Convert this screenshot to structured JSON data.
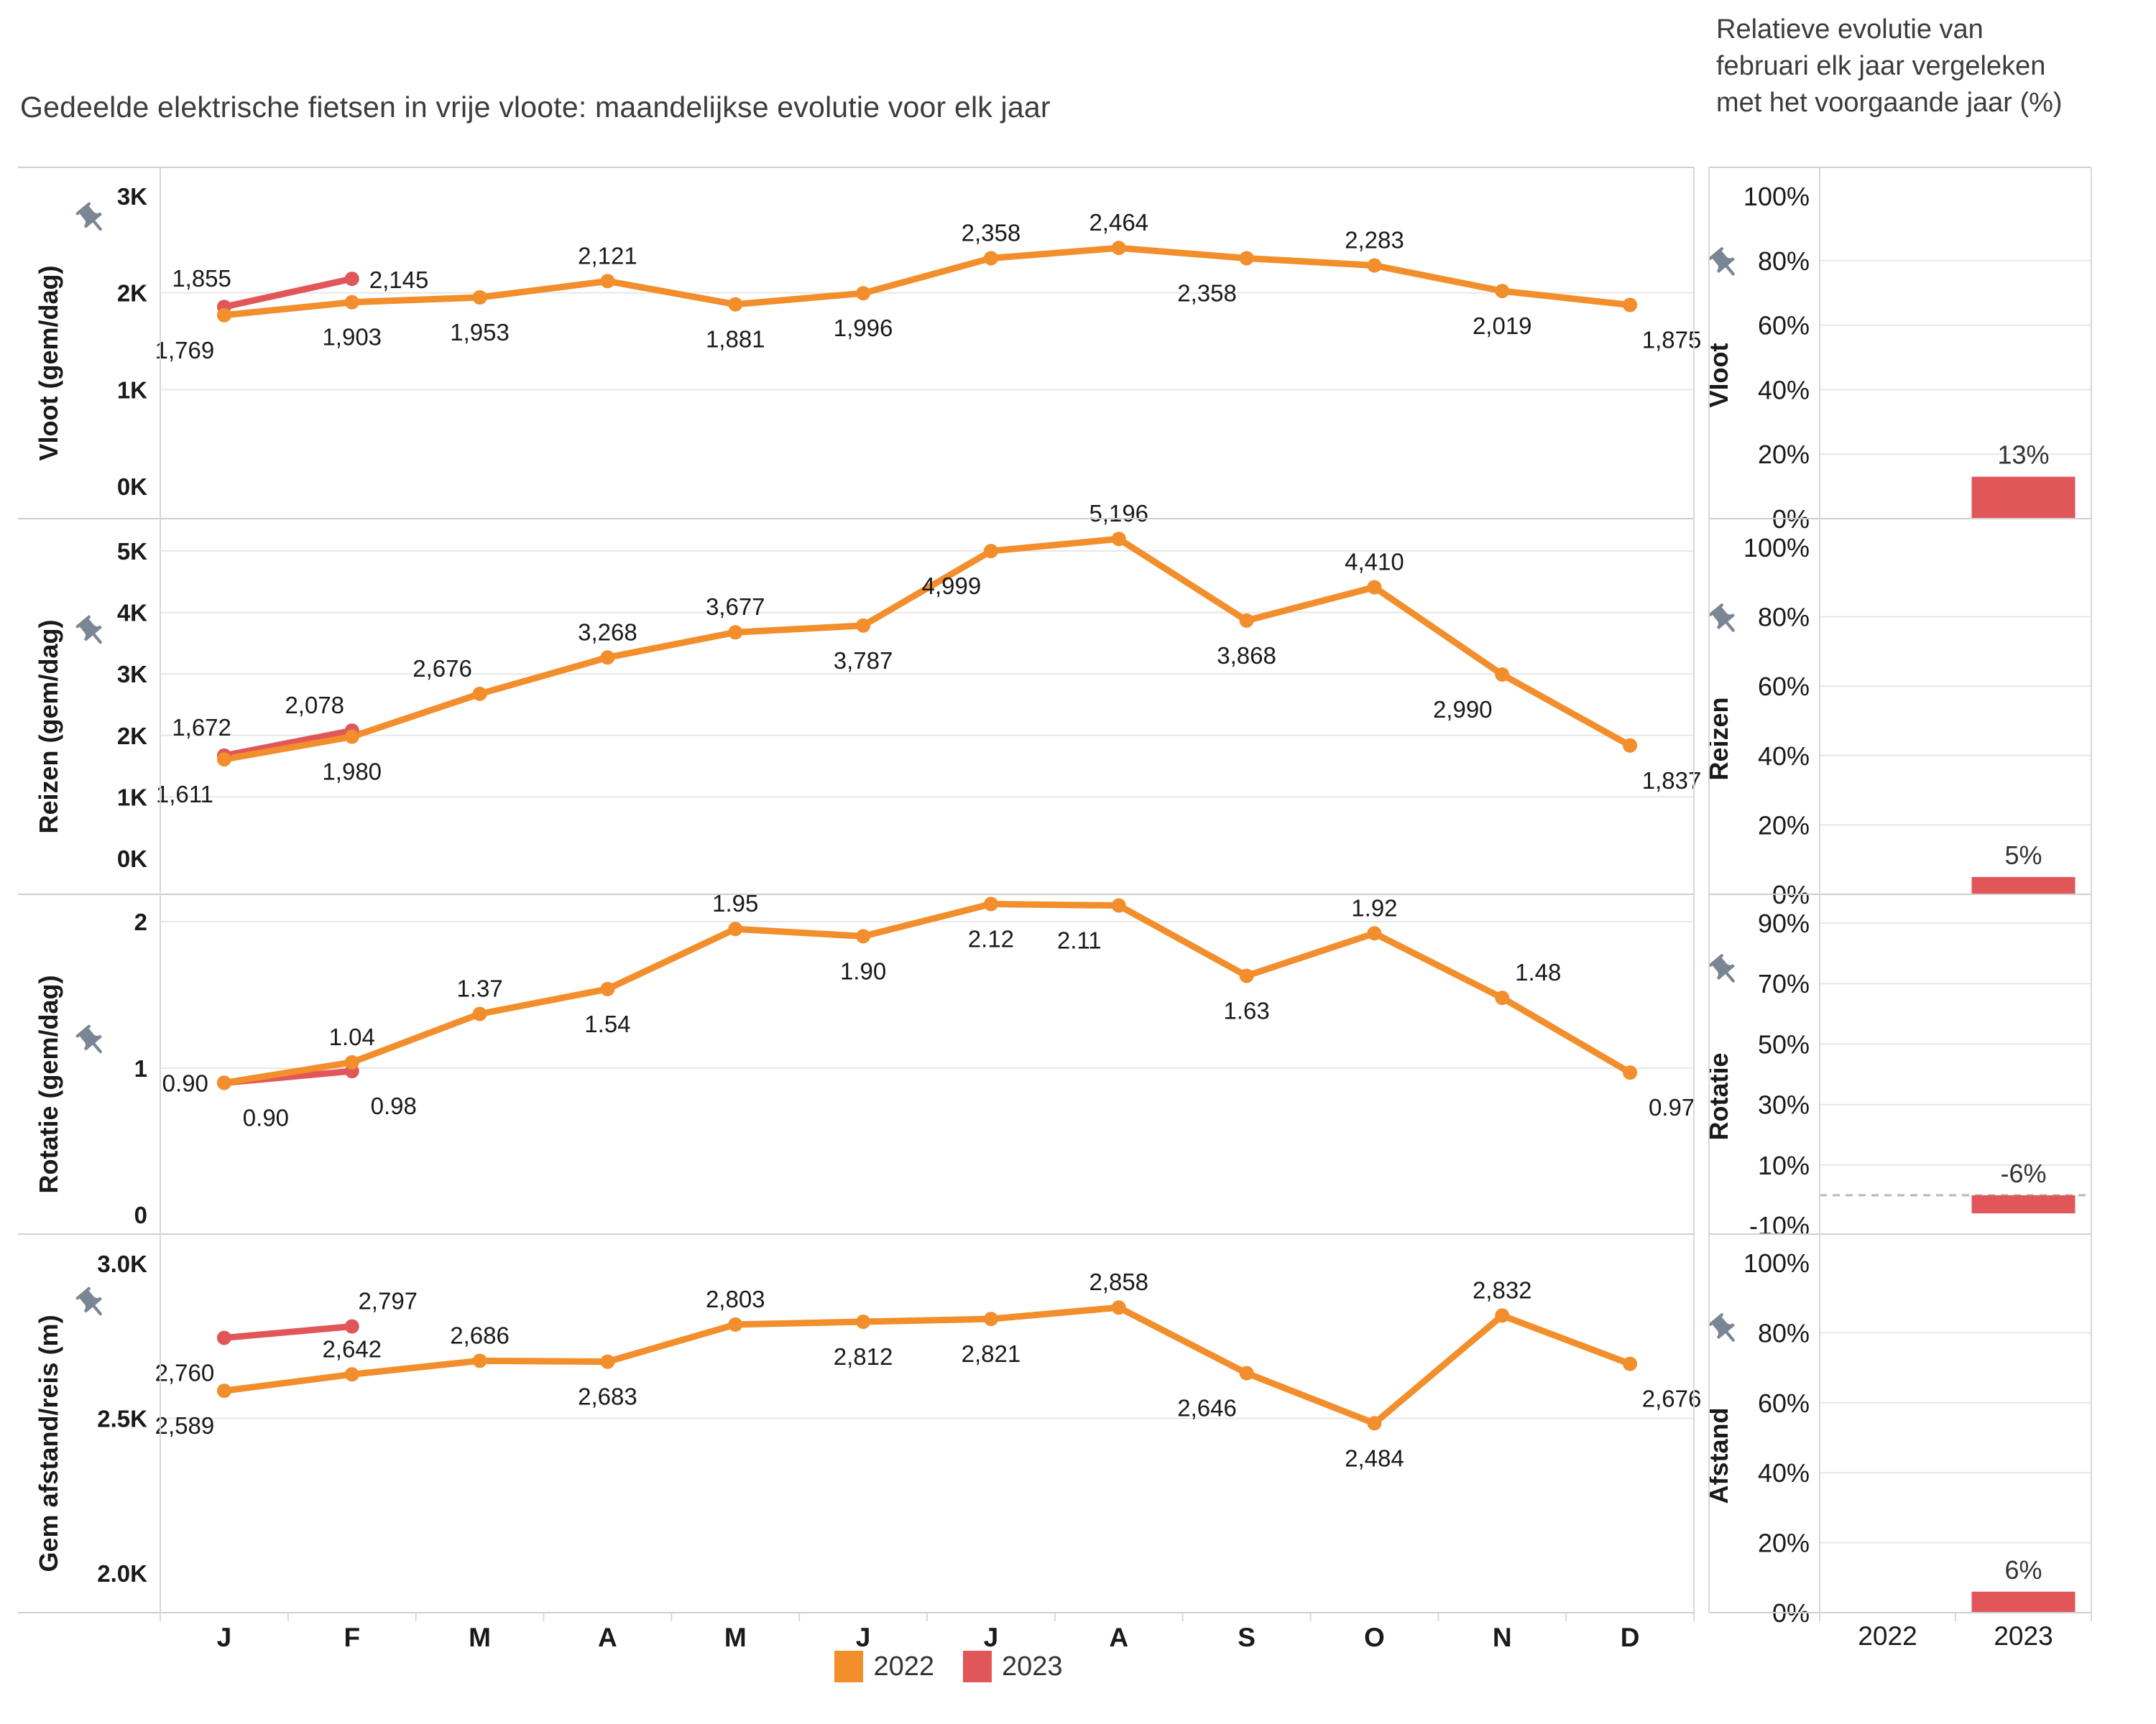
{
  "title": "Gedeelde elektrische fietsen in vrije vloote: maandelijkse evolutie voor elk jaar",
  "right_panel_title": "Relatieve evolutie van\nfebruari elk jaar vergeleken\nmet het voorgaande jaar (%)",
  "legend": [
    {
      "label": "2022",
      "color": "#F28E2B"
    },
    {
      "label": "2023",
      "color": "#E15759"
    }
  ],
  "x_axis": {
    "months": [
      "J",
      "F",
      "M",
      "A",
      "M",
      "J",
      "J",
      "A",
      "S",
      "O",
      "N",
      "D"
    ],
    "years": [
      "2022",
      "2023"
    ]
  },
  "colors": {
    "series_2022": "#F28E2B",
    "series_2023": "#E15759",
    "bar": "#E15759",
    "pin": "#7b8694",
    "grid": "#e7e7e7",
    "border": "#cfcfcf",
    "axis": "#d8d8d8",
    "text": "#1a1a1a"
  },
  "chart_data": [
    {
      "line": {
        "type": "line",
        "title": "Vloot (gem/dag)",
        "ylim": [
          0,
          3000
        ],
        "yticks": [
          {
            "v": 0,
            "t": "0K"
          },
          {
            "v": 1000,
            "t": "1K"
          },
          {
            "v": 2000,
            "t": "2K"
          },
          {
            "v": 3000,
            "t": "3K"
          }
        ],
        "series": [
          {
            "name": "2022",
            "color": "#F28E2B",
            "values": [
              1769,
              1903,
              1953,
              2121,
              1881,
              1996,
              2358,
              2464,
              2358,
              2283,
              2019,
              1875
            ],
            "labels": [
              "1,769",
              "1,903",
              "1,953",
              "2,121",
              "1,881",
              "1,996",
              "2,358",
              "2,464",
              "2,358",
              "2,283",
              "2,019",
              "1,875"
            ],
            "label_pos": [
              "below-left",
              "below",
              "below",
              "above",
              "below",
              "below",
              "above",
              "above",
              "below-left",
              "above",
              "below",
              "below-right"
            ]
          },
          {
            "name": "2023",
            "color": "#E15759",
            "values": [
              1855,
              2145
            ],
            "labels": [
              "1,855",
              "2,145"
            ],
            "label_pos": [
              "upper-left",
              "right"
            ]
          }
        ]
      },
      "bar": {
        "type": "bar",
        "title": "Vloot",
        "ylim": [
          0,
          100
        ],
        "yticks": [
          {
            "v": 100,
            "t": "100%"
          },
          {
            "v": 80,
            "t": "80%"
          },
          {
            "v": 60,
            "t": "60%"
          },
          {
            "v": 40,
            "t": "40%"
          },
          {
            "v": 20,
            "t": "20%"
          },
          {
            "v": 0,
            "t": "0%"
          }
        ],
        "categories": [
          "2022",
          "2023"
        ],
        "values": [
          null,
          13
        ],
        "bar_labels": [
          null,
          "13%"
        ],
        "zero_line": false
      }
    },
    {
      "line": {
        "type": "line",
        "title": "Reizen (gem/dag)",
        "ylim": [
          0,
          5000
        ],
        "yticks": [
          {
            "v": 0,
            "t": "0K"
          },
          {
            "v": 1000,
            "t": "1K"
          },
          {
            "v": 2000,
            "t": "2K"
          },
          {
            "v": 3000,
            "t": "3K"
          },
          {
            "v": 4000,
            "t": "4K"
          },
          {
            "v": 5000,
            "t": "5K"
          }
        ],
        "series": [
          {
            "name": "2022",
            "color": "#F28E2B",
            "values": [
              1611,
              1980,
              2676,
              3268,
              3677,
              3787,
              4999,
              5196,
              3868,
              4410,
              2990,
              1837
            ],
            "labels": [
              "1,611",
              "1,980",
              "2,676",
              "3,268",
              "3,677",
              "3,787",
              "4,999",
              "5,196",
              "3,868",
              "4,410",
              "2,990",
              "1,837"
            ],
            "label_pos": [
              "below-left",
              "below",
              "above-left",
              "above",
              "above",
              "below",
              "below-left",
              "above",
              "below",
              "above",
              "below-left",
              "below-right"
            ]
          },
          {
            "name": "2023",
            "color": "#E15759",
            "values": [
              1672,
              2078
            ],
            "labels": [
              "1,672",
              "2,078"
            ],
            "label_pos": [
              "upper-left",
              "above-left"
            ]
          }
        ]
      },
      "bar": {
        "type": "bar",
        "title": "Reizen",
        "ylim": [
          0,
          100
        ],
        "yticks": [
          {
            "v": 100,
            "t": "100%"
          },
          {
            "v": 80,
            "t": "80%"
          },
          {
            "v": 60,
            "t": "60%"
          },
          {
            "v": 40,
            "t": "40%"
          },
          {
            "v": 20,
            "t": "20%"
          },
          {
            "v": 0,
            "t": "0%"
          }
        ],
        "categories": [
          "2022",
          "2023"
        ],
        "values": [
          null,
          5
        ],
        "bar_labels": [
          null,
          "5%"
        ],
        "zero_line": false
      }
    },
    {
      "line": {
        "type": "line",
        "title": "Rotatie (gem/dag)",
        "ylim": [
          0,
          2
        ],
        "yticks": [
          {
            "v": 0,
            "t": "0"
          },
          {
            "v": 1,
            "t": "1"
          },
          {
            "v": 2,
            "t": "2"
          }
        ],
        "series": [
          {
            "name": "2022",
            "color": "#F28E2B",
            "values": [
              0.9,
              1.04,
              1.37,
              1.54,
              1.95,
              1.9,
              2.12,
              2.11,
              1.63,
              1.92,
              1.48,
              0.97
            ],
            "labels": [
              "0.90",
              "1.04",
              "1.37",
              "1.54",
              "1.95",
              "1.90",
              "2.12",
              "2.11",
              "1.63",
              "1.92",
              "1.48",
              "0.97"
            ],
            "label_pos": [
              "left",
              "above",
              "above",
              "below",
              "above",
              "below",
              "below",
              "below-left",
              "below",
              "above",
              "above-right",
              "below-right"
            ]
          },
          {
            "name": "2023",
            "color": "#E15759",
            "values": [
              0.9,
              0.98
            ],
            "labels": [
              "0.90",
              "0.98"
            ],
            "label_pos": [
              "below-right",
              "below-right"
            ]
          }
        ]
      },
      "bar": {
        "type": "bar",
        "title": "Rotatie",
        "ylim": [
          -10,
          90
        ],
        "yticks": [
          {
            "v": 90,
            "t": "90%"
          },
          {
            "v": 70,
            "t": "70%"
          },
          {
            "v": 50,
            "t": "50%"
          },
          {
            "v": 30,
            "t": "30%"
          },
          {
            "v": 10,
            "t": "10%"
          },
          {
            "v": -10,
            "t": "-10%"
          }
        ],
        "categories": [
          "2022",
          "2023"
        ],
        "values": [
          null,
          -6
        ],
        "bar_labels": [
          null,
          "-6%"
        ],
        "zero_line": true
      }
    },
    {
      "line": {
        "type": "line",
        "title": "Gem afstand/reis (m)",
        "ylim": [
          2000,
          3000
        ],
        "yticks": [
          {
            "v": 2000,
            "t": "2.0K"
          },
          {
            "v": 2500,
            "t": "2.5K"
          },
          {
            "v": 3000,
            "t": "3.0K"
          }
        ],
        "series": [
          {
            "name": "2022",
            "color": "#F28E2B",
            "values": [
              2589,
              2642,
              2686,
              2683,
              2803,
              2812,
              2821,
              2858,
              2646,
              2484,
              2832,
              2676
            ],
            "labels": [
              "2,589",
              "2,642",
              "2,686",
              "2,683",
              "2,803",
              "2,812",
              "2,821",
              "2,858",
              "2,646",
              "2,484",
              "2,832",
              "2,676"
            ],
            "label_pos": [
              "below-left",
              "above",
              "above",
              "below",
              "above",
              "below",
              "below",
              "above",
              "below-left",
              "below",
              "above",
              "below-right"
            ]
          },
          {
            "name": "2023",
            "color": "#E15759",
            "values": [
              2760,
              2797
            ],
            "labels": [
              "2,760",
              "2,797"
            ],
            "label_pos": [
              "below-left",
              "above-right"
            ]
          }
        ]
      },
      "bar": {
        "type": "bar",
        "title": "Afstand",
        "ylim": [
          0,
          100
        ],
        "yticks": [
          {
            "v": 100,
            "t": "100%"
          },
          {
            "v": 80,
            "t": "80%"
          },
          {
            "v": 60,
            "t": "60%"
          },
          {
            "v": 40,
            "t": "40%"
          },
          {
            "v": 20,
            "t": "20%"
          },
          {
            "v": 0,
            "t": "0%"
          }
        ],
        "categories": [
          "2022",
          "2023"
        ],
        "values": [
          null,
          6
        ],
        "bar_labels": [
          null,
          "6%"
        ],
        "zero_line": false
      }
    }
  ]
}
